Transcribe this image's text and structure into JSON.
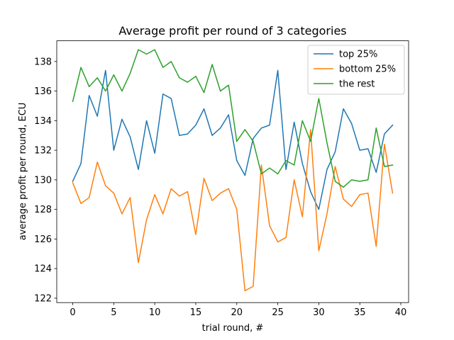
{
  "chart_data": {
    "type": "line",
    "title": "Average profit per round of 3 categories",
    "xlabel": "trial round, #",
    "ylabel": "average profit per round, ECU",
    "xlim": [
      -1.95,
      40.95
    ],
    "ylim": [
      121.7,
      139.4
    ],
    "xticks": [
      0,
      5,
      10,
      15,
      20,
      25,
      30,
      35,
      40
    ],
    "yticks": [
      122,
      124,
      126,
      128,
      130,
      132,
      134,
      136,
      138
    ],
    "grid": false,
    "legend_position": "upper right",
    "x": [
      0,
      1,
      2,
      3,
      4,
      5,
      6,
      7,
      8,
      9,
      10,
      11,
      12,
      13,
      14,
      15,
      16,
      17,
      18,
      19,
      20,
      21,
      22,
      23,
      24,
      25,
      26,
      27,
      28,
      29,
      30,
      31,
      32,
      33,
      34,
      35,
      36,
      37,
      38,
      39
    ],
    "series": [
      {
        "name": "top 25%",
        "color": "#1f77b4",
        "values": [
          129.9,
          131.1,
          135.7,
          134.3,
          137.4,
          132.0,
          134.1,
          132.9,
          130.7,
          134.0,
          131.8,
          135.8,
          135.5,
          133.0,
          133.1,
          133.7,
          134.8,
          133.0,
          133.5,
          134.4,
          131.3,
          130.3,
          132.8,
          133.5,
          133.7,
          137.4,
          130.7,
          133.9,
          131.1,
          129.2,
          128.0,
          130.7,
          131.9,
          134.8,
          133.8,
          132.0,
          132.1,
          130.5,
          133.1,
          133.7
        ]
      },
      {
        "name": "bottom 25%",
        "color": "#ff7f0e",
        "values": [
          129.8,
          128.4,
          128.8,
          131.2,
          129.6,
          129.1,
          127.7,
          128.8,
          124.4,
          127.3,
          129.0,
          127.7,
          129.4,
          128.9,
          129.2,
          126.3,
          130.1,
          128.6,
          129.1,
          129.4,
          128.0,
          122.5,
          122.8,
          131.0,
          126.9,
          125.8,
          126.1,
          130.0,
          127.5,
          133.4,
          125.2,
          127.7,
          130.9,
          128.7,
          128.2,
          129.0,
          129.1,
          125.5,
          132.4,
          129.1
        ]
      },
      {
        "name": "the rest",
        "color": "#2ca02c",
        "values": [
          135.3,
          137.6,
          136.3,
          136.9,
          136.0,
          137.1,
          136.0,
          137.2,
          138.8,
          138.5,
          138.8,
          137.6,
          138.0,
          136.9,
          136.6,
          137.0,
          135.9,
          137.8,
          136.0,
          136.4,
          132.6,
          133.4,
          132.6,
          130.4,
          130.8,
          130.4,
          131.3,
          131.0,
          134.0,
          132.6,
          135.5,
          132.5,
          129.9,
          129.5,
          130.0,
          129.9,
          130.0,
          133.5,
          130.9,
          131.0
        ]
      }
    ]
  }
}
